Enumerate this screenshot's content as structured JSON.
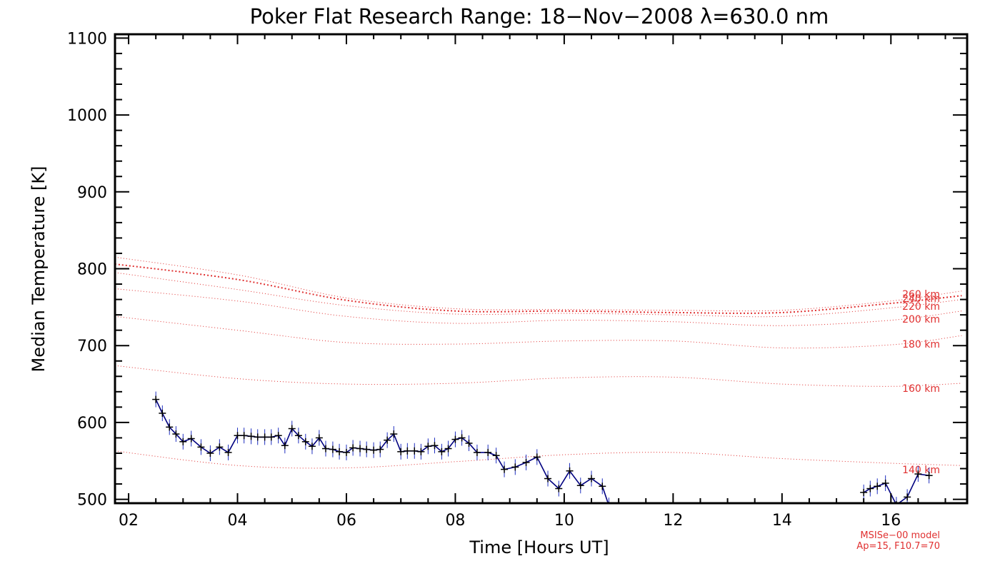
{
  "chart_data": {
    "type": "line",
    "title": "Poker Flat Research Range: 18−Nov−2008 λ=630.0 nm",
    "xlabel": "Time [Hours UT]",
    "ylabel": "Median Temperature [K]",
    "xlim": [
      1.75,
      17.4
    ],
    "ylim": [
      495,
      1105
    ],
    "xticks": [
      2,
      4,
      6,
      8,
      10,
      12,
      14,
      16
    ],
    "xtick_labels": [
      "02",
      "04",
      "06",
      "08",
      "10",
      "12",
      "14",
      "16"
    ],
    "yticks": [
      500,
      600,
      700,
      800,
      900,
      1000,
      1100
    ],
    "ytick_labels": [
      "500",
      "600",
      "700",
      "800",
      "900",
      "1000",
      "1100"
    ],
    "grid": false,
    "note_lines": [
      "MSISe−00 model",
      "Ap=15, F10.7=70"
    ],
    "series": [
      {
        "kind": "measurement",
        "color": "#000080",
        "errorbar_color": "#2030c0",
        "marker": "plus",
        "segments": [
          [
            [
              2.5,
              630
            ],
            [
              2.62,
              612
            ],
            [
              2.75,
              594
            ],
            [
              2.87,
              585
            ],
            [
              3.0,
              575
            ],
            [
              3.15,
              579
            ],
            [
              3.33,
              568
            ],
            [
              3.5,
              560
            ],
            [
              3.67,
              568
            ],
            [
              3.83,
              561
            ],
            [
              4.0,
              583
            ],
            [
              4.12,
              583
            ],
            [
              4.25,
              582
            ],
            [
              4.37,
              581
            ],
            [
              4.5,
              581
            ],
            [
              4.62,
              581
            ],
            [
              4.75,
              583
            ],
            [
              4.87,
              570
            ],
            [
              5.0,
              592
            ],
            [
              5.12,
              583
            ],
            [
              5.25,
              575
            ],
            [
              5.37,
              569
            ],
            [
              5.5,
              580
            ],
            [
              5.62,
              566
            ],
            [
              5.75,
              565
            ],
            [
              5.87,
              562
            ],
            [
              6.0,
              561
            ],
            [
              6.12,
              567
            ],
            [
              6.25,
              566
            ],
            [
              6.37,
              565
            ],
            [
              6.5,
              564
            ],
            [
              6.62,
              565
            ],
            [
              6.75,
              577
            ],
            [
              6.87,
              585
            ],
            [
              7.0,
              562
            ],
            [
              7.12,
              563
            ],
            [
              7.25,
              563
            ],
            [
              7.37,
              562
            ],
            [
              7.5,
              569
            ],
            [
              7.62,
              570
            ],
            [
              7.75,
              562
            ],
            [
              7.87,
              566
            ],
            [
              8.0,
              578
            ],
            [
              8.12,
              580
            ],
            [
              8.25,
              573
            ],
            [
              8.4,
              561
            ],
            [
              8.6,
              561
            ],
            [
              8.75,
              557
            ],
            [
              8.9,
              539
            ],
            [
              9.1,
              542
            ],
            [
              9.3,
              548
            ],
            [
              9.5,
              555
            ],
            [
              9.7,
              527
            ],
            [
              9.9,
              514
            ],
            [
              10.1,
              537
            ],
            [
              10.3,
              518
            ],
            [
              10.5,
              527
            ],
            [
              10.7,
              517
            ],
            [
              10.82,
              492
            ]
          ],
          [
            [
              15.5,
              509
            ],
            [
              15.62,
              514
            ],
            [
              15.75,
              517
            ],
            [
              15.9,
              521
            ],
            [
              16.1,
              493
            ],
            [
              16.3,
              503
            ],
            [
              16.5,
              533
            ],
            [
              16.7,
              531
            ]
          ]
        ]
      },
      {
        "name": "260 km",
        "color": "#e03030",
        "x": [
          1.75,
          4,
          6,
          8,
          10,
          12,
          14,
          16,
          17.3
        ],
        "values": [
          815,
          792,
          762,
          748,
          747,
          746,
          746,
          758,
          771
        ]
      },
      {
        "name": "240 km",
        "color": "#e03030",
        "x": [
          1.75,
          4,
          6,
          8,
          10,
          12,
          14,
          16,
          17.3
        ],
        "values": [
          806,
          786,
          759,
          745,
          745,
          743,
          743,
          755,
          765
        ]
      },
      {
        "name": "220 km",
        "color": "#e03030",
        "x": [
          1.75,
          4,
          6,
          8,
          10,
          12,
          14,
          16,
          17.3
        ],
        "values": [
          795,
          773,
          752,
          741,
          742,
          740,
          738,
          749,
          760
        ]
      },
      {
        "name": "200 km",
        "color": "#e03030",
        "x": [
          1.75,
          4,
          6,
          8,
          10,
          12,
          14,
          16,
          17.3
        ],
        "values": [
          774,
          758,
          738,
          729,
          733,
          731,
          726,
          733,
          745
        ]
      },
      {
        "name": "180 km",
        "color": "#e03030",
        "x": [
          1.75,
          4,
          6,
          8,
          10,
          12,
          14,
          16,
          17.3
        ],
        "values": [
          738,
          720,
          704,
          702,
          706,
          706,
          697,
          701,
          713
        ]
      },
      {
        "name": "160 km",
        "color": "#e03030",
        "x": [
          1.75,
          4,
          6,
          8,
          10,
          12,
          14,
          16,
          17.3
        ],
        "values": [
          674,
          657,
          650,
          651,
          658,
          659,
          650,
          647,
          651
        ]
      },
      {
        "name": "140 km",
        "color": "#e03030",
        "x": [
          1.75,
          4,
          6,
          8,
          10,
          12,
          14,
          16,
          17.3
        ],
        "values": [
          563,
          544,
          541,
          549,
          558,
          561,
          553,
          547,
          544
        ]
      }
    ]
  }
}
